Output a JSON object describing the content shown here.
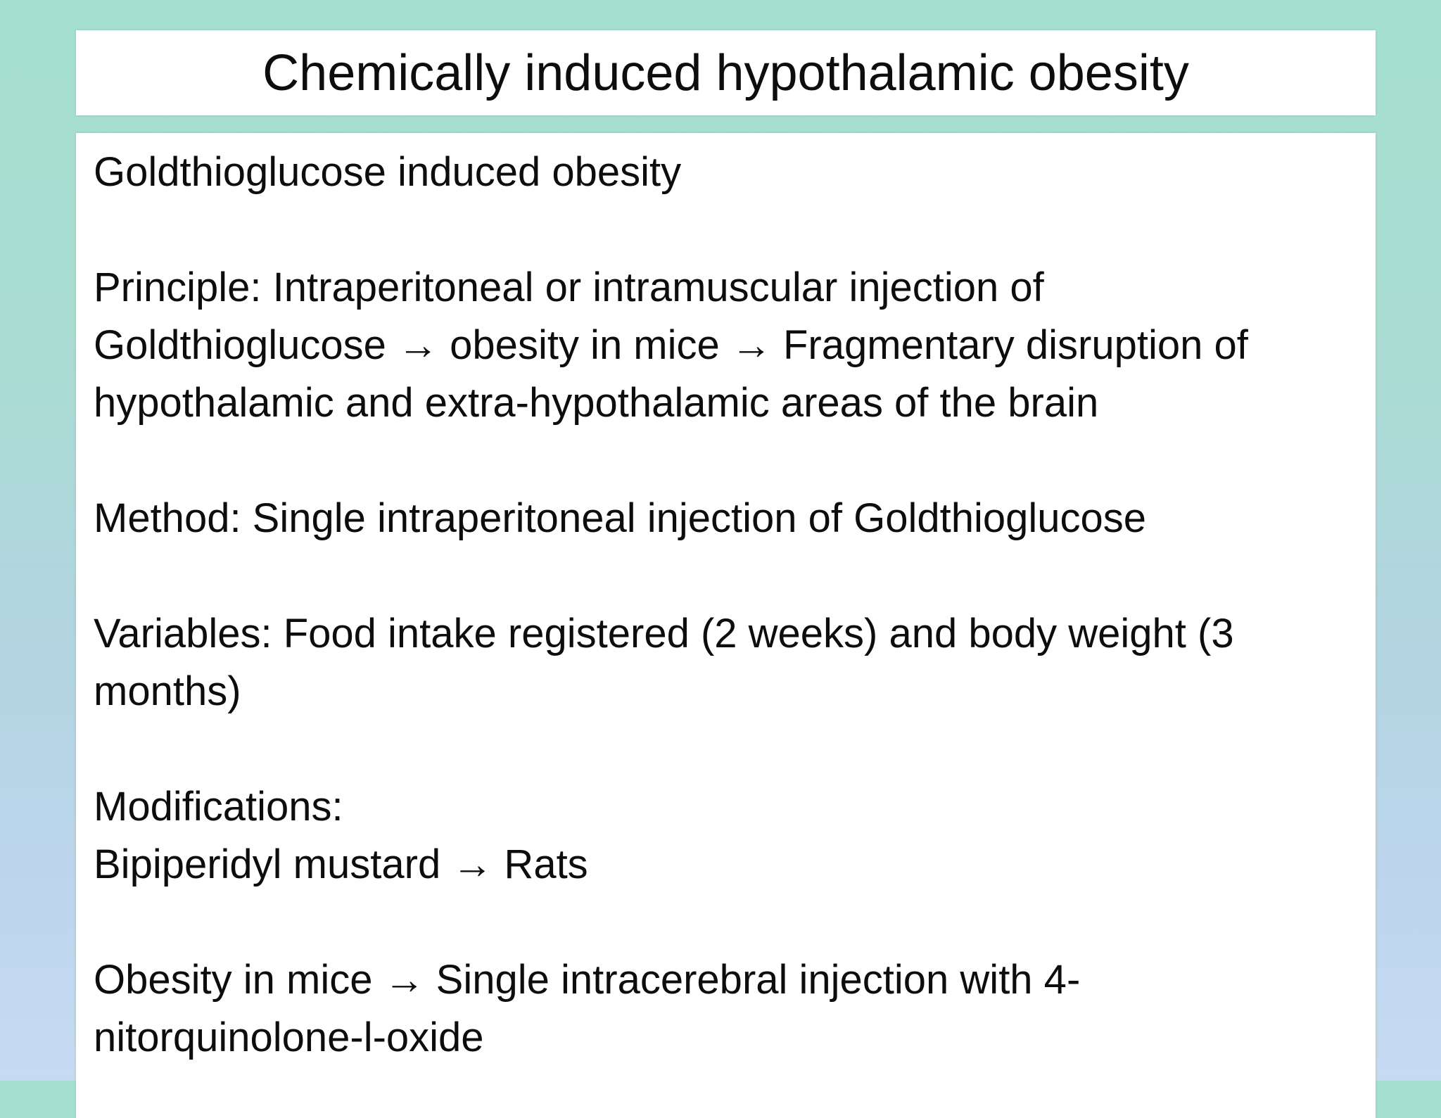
{
  "slide": {
    "title": "Chemically induced hypothalamic obesity"
  },
  "content": {
    "paragraphs": [
      {
        "text": "Goldthioglucose induced obesity"
      },
      {
        "text": "Principle: Intraperitoneal or intramuscular injection of\nGoldthioglucose → obesity in mice → Fragmentary disruption of\nhypothalamic and extra-hypothalamic areas of the brain"
      },
      {
        "text": "Method: Single intraperitoneal injection of Goldthioglucose"
      },
      {
        "text": "Variables: Food intake registered (2 weeks) and body weight (3\nmonths)"
      },
      {
        "text": "Modifications:\nBipiperidyl mustard → Rats"
      },
      {
        "text": "Obesity in mice → Single intracerebral injection with 4-\nnitorquinolone-l-oxide"
      }
    ]
  },
  "colors": {
    "background_top": "#a6e0cf",
    "background_bottom": "#c6dbf2",
    "panel": "#ffffff",
    "text": "#0d0d0d"
  }
}
